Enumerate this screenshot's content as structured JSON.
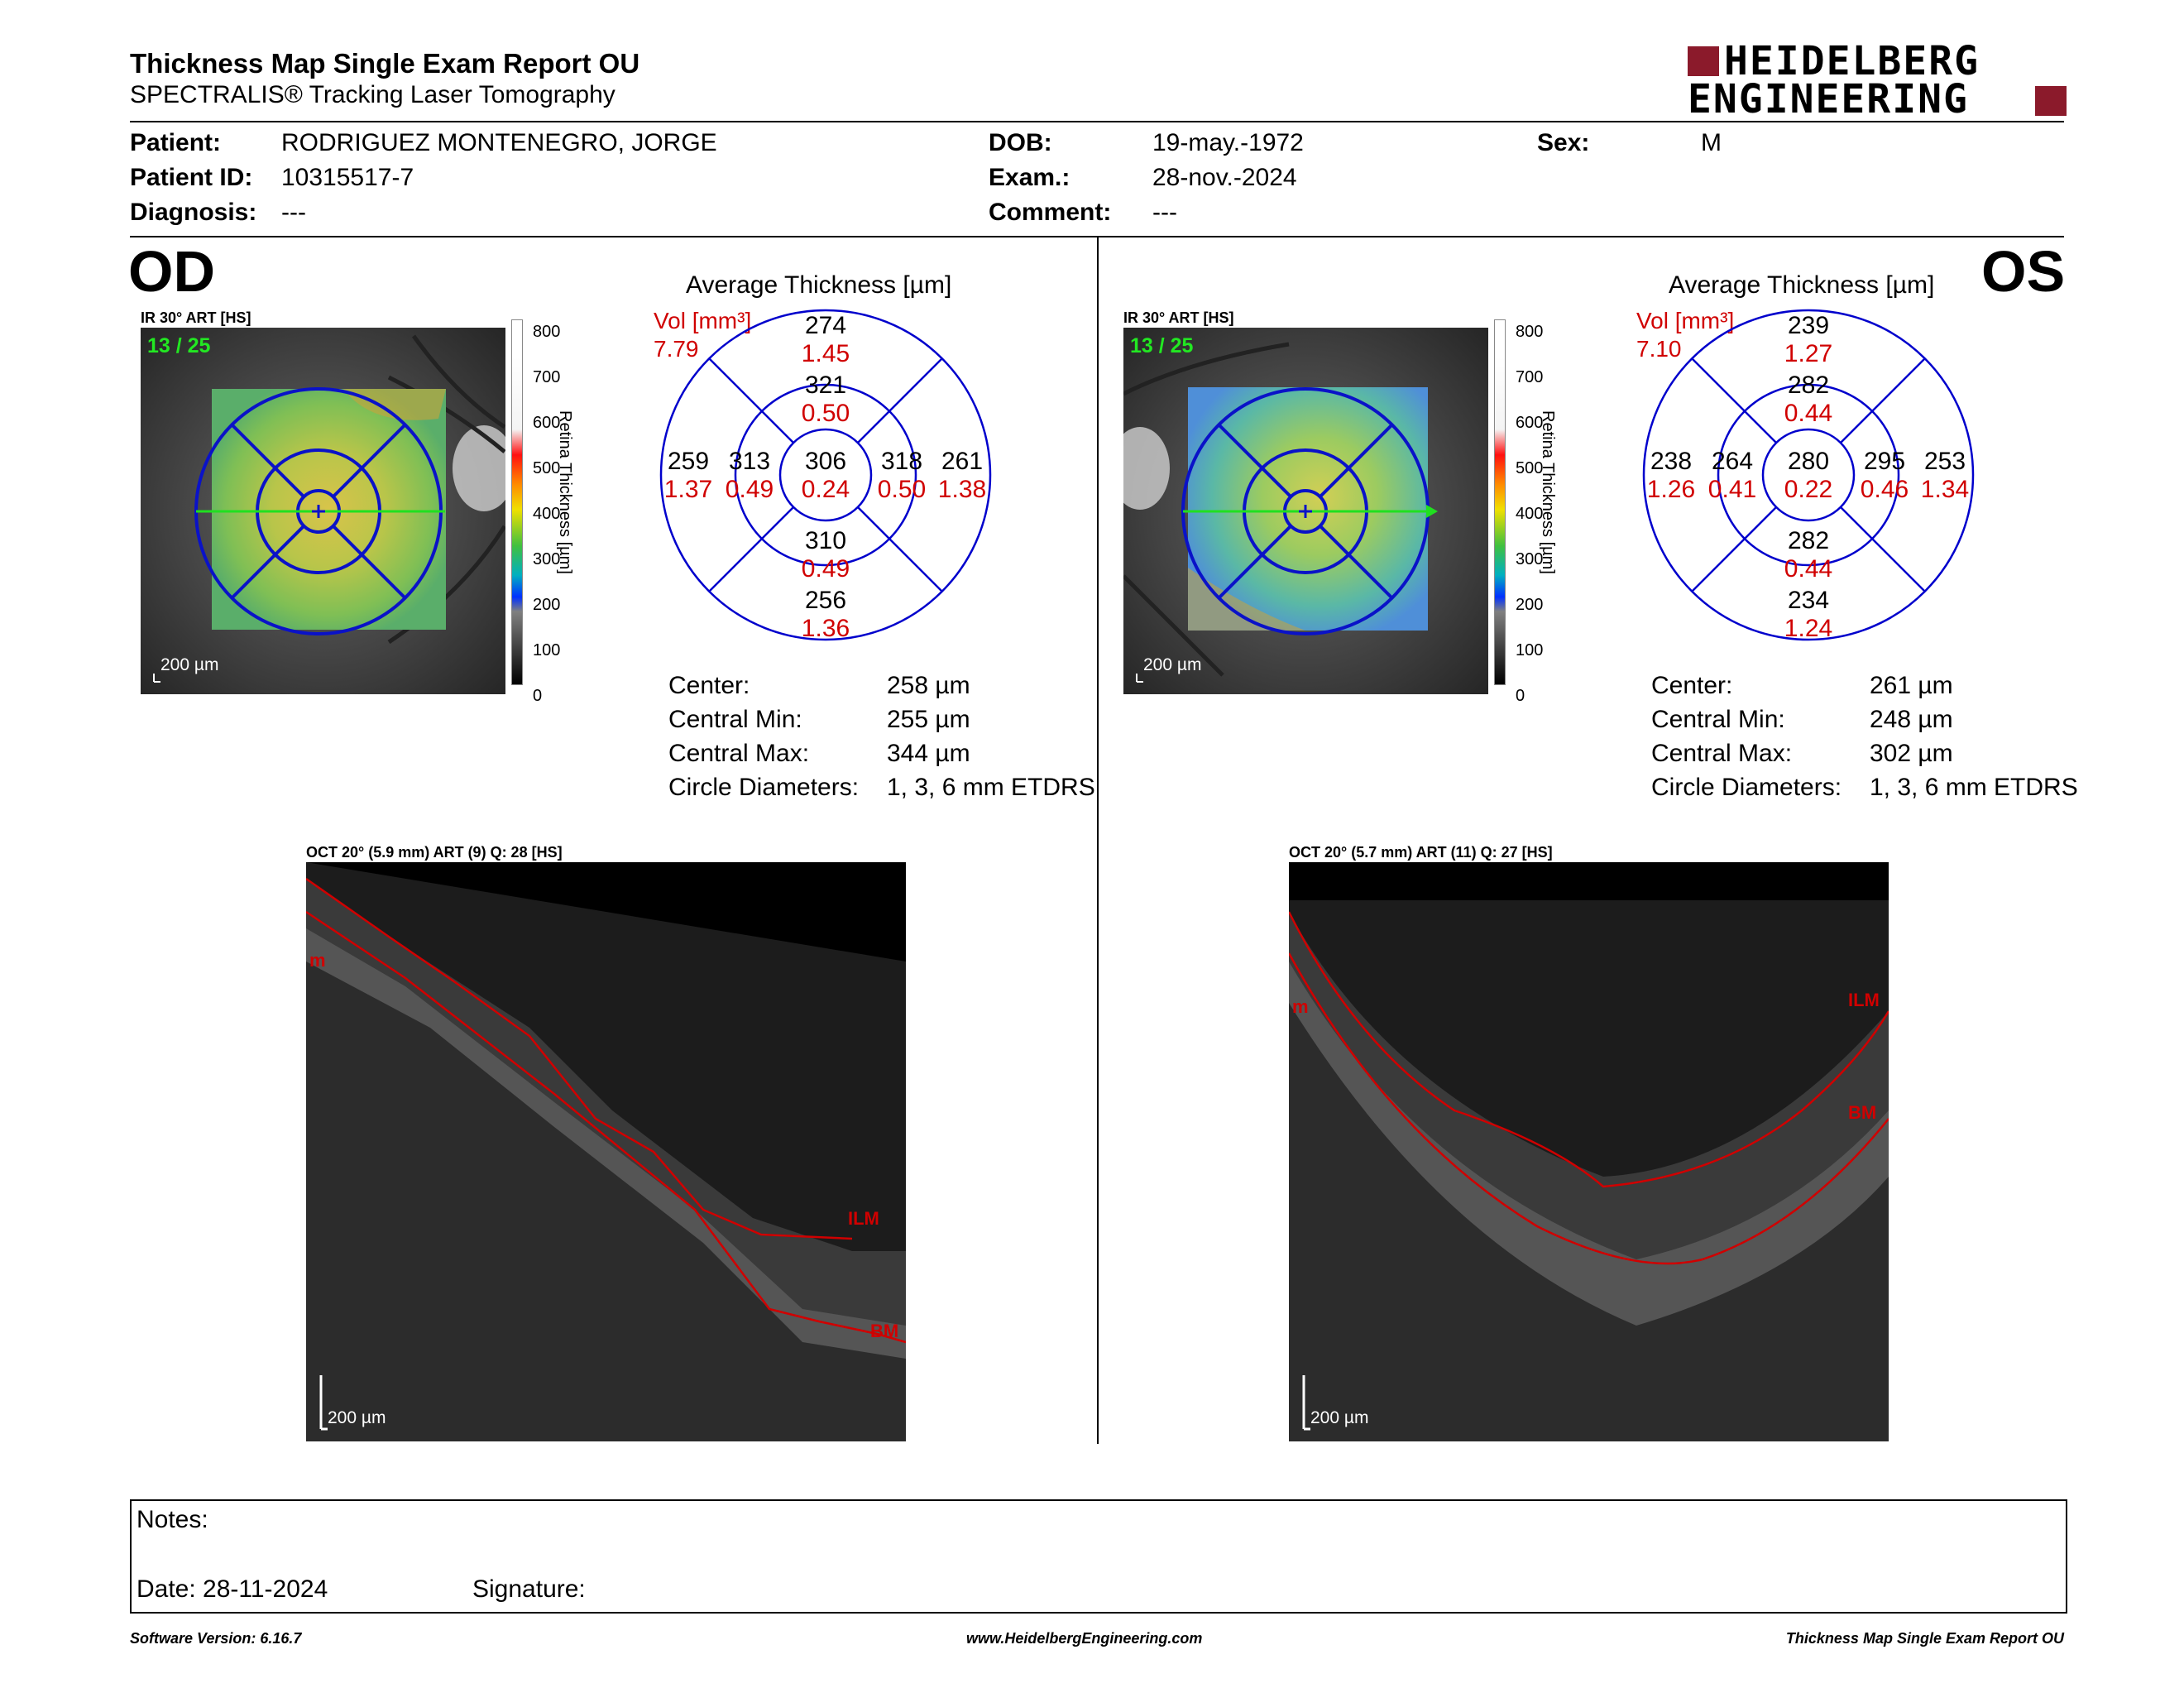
{
  "header": {
    "title": "Thickness Map Single Exam Report OU",
    "subtitle": "SPECTRALIS® Tracking Laser Tomography",
    "logo_line1": "HEIDELBERG",
    "logo_line2": "ENGINEERING"
  },
  "patient": {
    "patient_label": "Patient:",
    "patient_value": "RODRIGUEZ MONTENEGRO, JORGE",
    "id_label": "Patient ID:",
    "id_value": "10315517-7",
    "diag_label": "Diagnosis:",
    "diag_value": "---",
    "dob_label": "DOB:",
    "dob_value": "19-may.-1972",
    "exam_label": "Exam.:",
    "exam_value": "28-nov.-2024",
    "comment_label": "Comment:",
    "comment_value": "---",
    "sex_label": "Sex:",
    "sex_value": "M"
  },
  "colorbar": {
    "ticks": [
      "800",
      "700",
      "600",
      "500",
      "400",
      "300",
      "200",
      "100",
      "0"
    ],
    "label": "Retina Thickness [µm]"
  },
  "od": {
    "eye": "OD",
    "ir_label": "IR 30° ART [HS]",
    "frames": "13 / 25",
    "scale": "200 µm",
    "avg_title": "Average Thickness [µm]",
    "vol_label": "Vol [mm³]",
    "vol_value": "7.79",
    "sectors": {
      "outer_sup": [
        "274",
        "1.45"
      ],
      "inner_sup": [
        "321",
        "0.50"
      ],
      "outer_nas": [
        "259",
        "1.37"
      ],
      "inner_nas": [
        "313",
        "0.49"
      ],
      "center": [
        "306",
        "0.24"
      ],
      "inner_tem": [
        "318",
        "0.50"
      ],
      "outer_tem": [
        "261",
        "1.38"
      ],
      "inner_inf": [
        "310",
        "0.49"
      ],
      "outer_inf": [
        "256",
        "1.36"
      ]
    },
    "stats": [
      {
        "label": "Center:",
        "value": "258 µm"
      },
      {
        "label": "Central Min:",
        "value": "255 µm"
      },
      {
        "label": "Central Max:",
        "value": "344 µm"
      },
      {
        "label": "Circle Diameters:",
        "value": "1, 3, 6 mm ETDRS"
      }
    ],
    "oct_label": "OCT 20° (5.9 mm) ART (9) Q: 28 [HS]",
    "oct_scale": "200 µm",
    "ilm": "ILM",
    "bm": "BM",
    "m": "m"
  },
  "os": {
    "eye": "OS",
    "ir_label": "IR 30° ART [HS]",
    "frames": "13 / 25",
    "scale": "200 µm",
    "avg_title": "Average Thickness [µm]",
    "vol_label": "Vol [mm³]",
    "vol_value": "7.10",
    "sectors": {
      "outer_sup": [
        "239",
        "1.27"
      ],
      "inner_sup": [
        "282",
        "0.44"
      ],
      "outer_nas": [
        "238",
        "1.26"
      ],
      "inner_nas": [
        "264",
        "0.41"
      ],
      "center": [
        "280",
        "0.22"
      ],
      "inner_tem": [
        "295",
        "0.46"
      ],
      "outer_tem": [
        "253",
        "1.34"
      ],
      "inner_inf": [
        "282",
        "0.44"
      ],
      "outer_inf": [
        "234",
        "1.24"
      ]
    },
    "stats": [
      {
        "label": "Center:",
        "value": "261 µm"
      },
      {
        "label": "Central Min:",
        "value": "248 µm"
      },
      {
        "label": "Central Max:",
        "value": "302 µm"
      },
      {
        "label": "Circle Diameters:",
        "value": "1, 3, 6 mm ETDRS"
      }
    ],
    "oct_label": "OCT 20° (5.7 mm) ART (11) Q: 27 [HS]",
    "oct_scale": "200 µm",
    "ilm": "ILM",
    "bm": "BM",
    "m": "m"
  },
  "notes": {
    "notes_label": "Notes:",
    "date_label": "Date: 28-11-2024",
    "signature_label": "Signature:"
  },
  "footer": {
    "version": "Software Version: 6.16.7",
    "website": "www.HeidelbergEngineering.com",
    "report": "Thickness Map Single Exam Report OU"
  },
  "colors": {
    "red": "#d00000",
    "blue": "#0000cc",
    "logo_red": "#8b1a2b"
  }
}
